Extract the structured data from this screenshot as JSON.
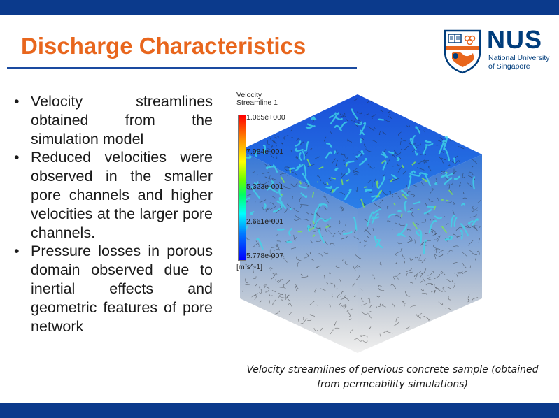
{
  "slide": {
    "title": "Discharge Characteristics",
    "accent_color": "#e8661d",
    "bar_color": "#0b3a8c"
  },
  "logo": {
    "word": "NUS",
    "subtitle_line1": "National University",
    "subtitle_line2": "of Singapore",
    "icon": "nus-crest-icon"
  },
  "bullets": [
    "Velocity streamlines obtained from the simulation model",
    "Reduced velocities were observed in the smaller pore channels and higher velocities at the larger pore channels.",
    "Pressure losses in porous domain observed due to inertial effects and geometric features of pore network"
  ],
  "figure": {
    "legend_title_line1": "Velocity",
    "legend_title_line2": "Streamline 1",
    "ticks": [
      "1.065e+000",
      "7.984e-001",
      "5.323e-001",
      "2.661e-001",
      "5.778e-007"
    ],
    "unit": "[m s^-1]",
    "caption_line1": "Velocity streamlines of pervious concrete sample (obtained",
    "caption_line2": "from permeability simulations)"
  }
}
